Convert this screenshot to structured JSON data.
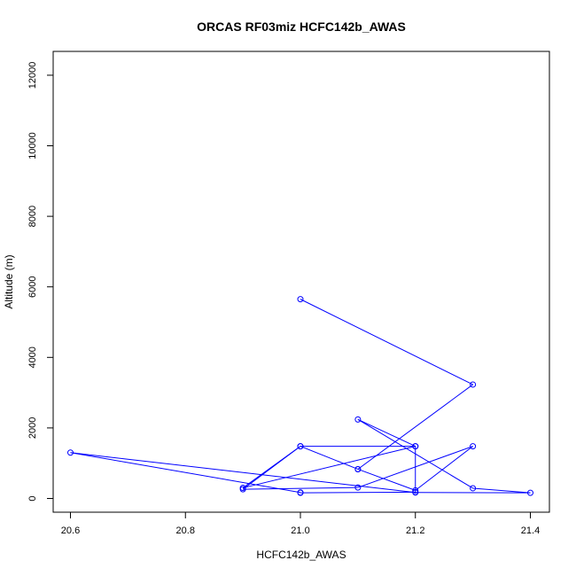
{
  "chart_data": {
    "type": "line",
    "title": "ORCAS RF03miz HCFC142b_AWAS",
    "xlabel": "HCFC142b_AWAS",
    "ylabel": "Altitude (m)",
    "xlim": [
      20.6,
      21.4
    ],
    "ylim": [
      0,
      12500
    ],
    "x_ticks": [
      "20.6",
      "20.8",
      "21.0",
      "21.2",
      "21.4"
    ],
    "y_ticks": [
      "0",
      "2000",
      "4000",
      "6000",
      "8000",
      "10000",
      "12000"
    ],
    "grid": false,
    "series": [
      {
        "color": "#0000ff",
        "marker": "open-circle",
        "points": [
          {
            "x": 21.0,
            "y": 5650
          },
          {
            "x": 21.3,
            "y": 3230
          },
          {
            "x": 21.1,
            "y": 830
          },
          {
            "x": 21.2,
            "y": 230
          },
          {
            "x": 21.3,
            "y": 1480
          },
          {
            "x": 21.1,
            "y": 310
          },
          {
            "x": 20.9,
            "y": 260
          },
          {
            "x": 21.0,
            "y": 1480
          },
          {
            "x": 21.2,
            "y": 1480
          },
          {
            "x": 21.2,
            "y": 180
          },
          {
            "x": 21.0,
            "y": 160
          },
          {
            "x": 21.0,
            "y": 170
          },
          {
            "x": 20.6,
            "y": 1300
          },
          {
            "x": 21.2,
            "y": 170
          },
          {
            "x": 21.4,
            "y": 160
          },
          {
            "x": 21.3,
            "y": 290
          },
          {
            "x": 21.1,
            "y": 2240
          },
          {
            "x": 21.2,
            "y": 1480
          },
          {
            "x": 20.9,
            "y": 300
          },
          {
            "x": 21.0,
            "y": 1480
          },
          {
            "x": 21.1,
            "y": 830
          }
        ]
      }
    ]
  }
}
